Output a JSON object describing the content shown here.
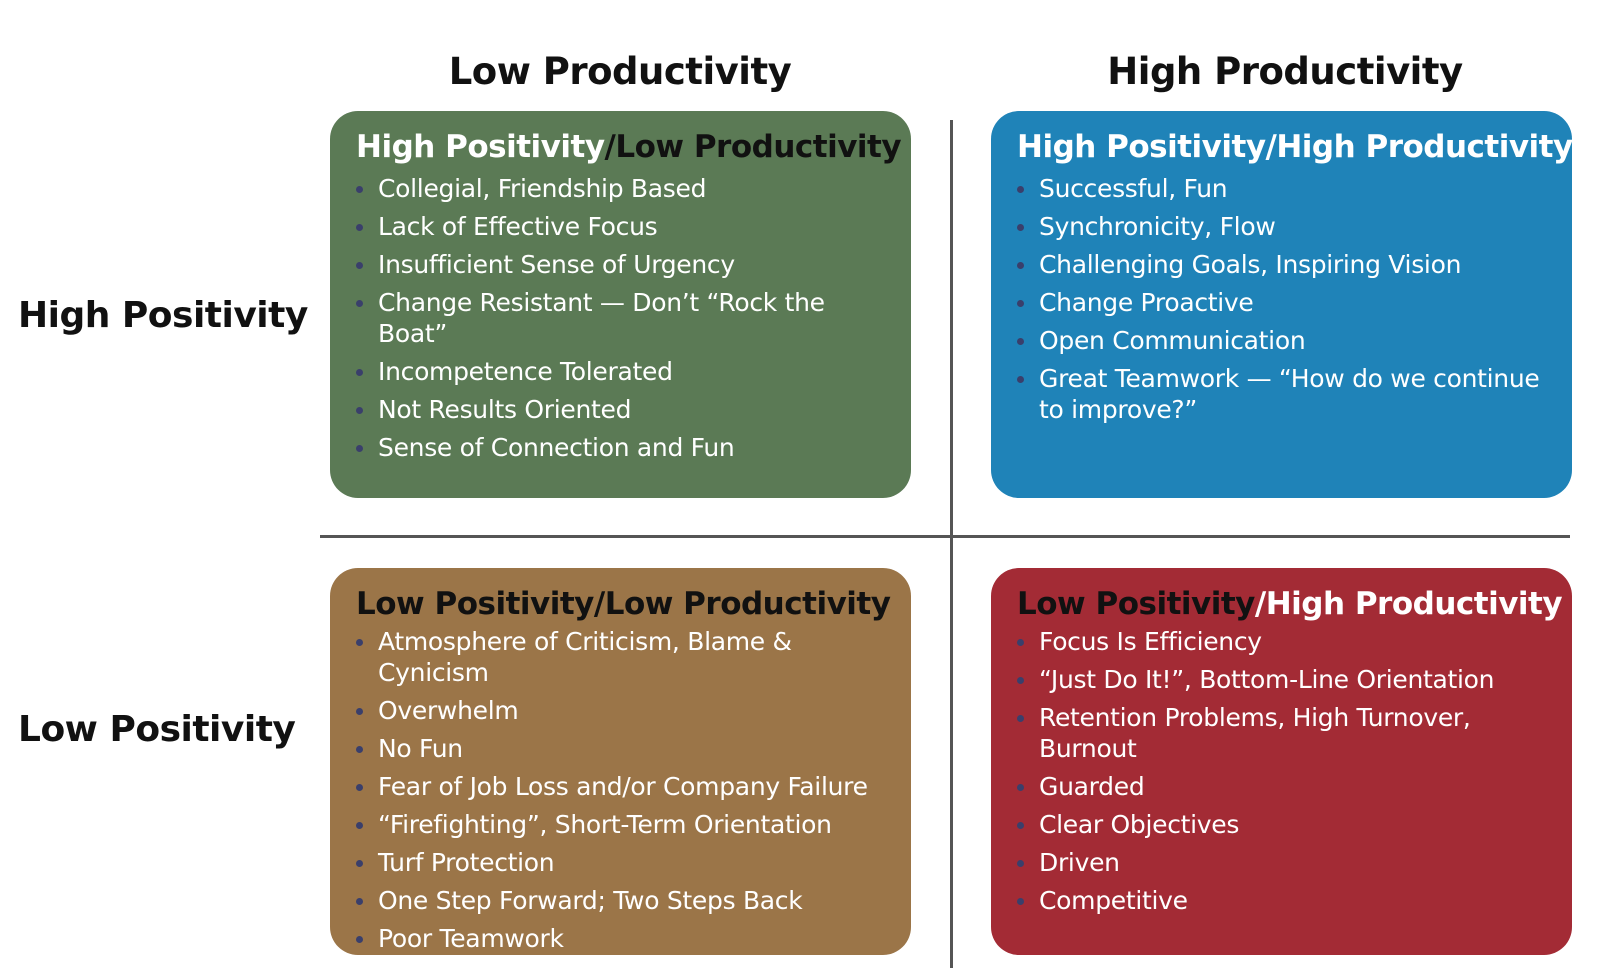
{
  "columns": {
    "low": "Low Productivity",
    "high": "High Productivity"
  },
  "rows": {
    "high": "High Positivity",
    "low": "Low Positivity"
  },
  "colors": {
    "green": "#5b7a55",
    "blue": "#1f83b8",
    "brown": "#9b7548",
    "red": "#a32b35",
    "bullet_dark": "#3a3f6b",
    "divider": "#555555"
  },
  "quadrants": {
    "hp_lp": {
      "title_a": "High Positivity",
      "title_b": "/Low Productivity",
      "items": [
        "Collegial, Friendship Based",
        "Lack of Effective Focus",
        "Insufficient Sense of Urgency",
        "Change Resistant — Don’t “Rock the Boat”",
        "Incompetence Tolerated",
        "Not Results Oriented",
        "Sense of Connection and Fun"
      ]
    },
    "hp_hp": {
      "title_a": "High Positivity/High Productivity",
      "title_b": "",
      "items": [
        "Successful, Fun",
        "Synchronicity, Flow",
        "Challenging Goals, Inspiring Vision",
        "Change Proactive",
        "Open Communication",
        "Great Teamwork — “How do we continue to improve?”"
      ]
    },
    "lp_lp": {
      "title_a": "Low Positivity/Low Productivity",
      "title_b": "",
      "items": [
        "Atmosphere of Criticism, Blame & Cynicism",
        "Overwhelm",
        "No Fun",
        "Fear of Job Loss and/or Company Failure",
        "“Firefighting”, Short-Term Orientation",
        "Turf Protection",
        "One Step Forward; Two Steps Back",
        "Poor Teamwork"
      ]
    },
    "lp_hp": {
      "title_a": "Low Positivity",
      "title_b": "/High Productivity",
      "items": [
        "Focus Is Efficiency",
        "“Just Do It!”, Bottom-Line Orientation",
        "Retention Problems, High Turnover, Burnout",
        "Guarded",
        "Clear Objectives",
        "Driven",
        "Competitive"
      ]
    }
  }
}
